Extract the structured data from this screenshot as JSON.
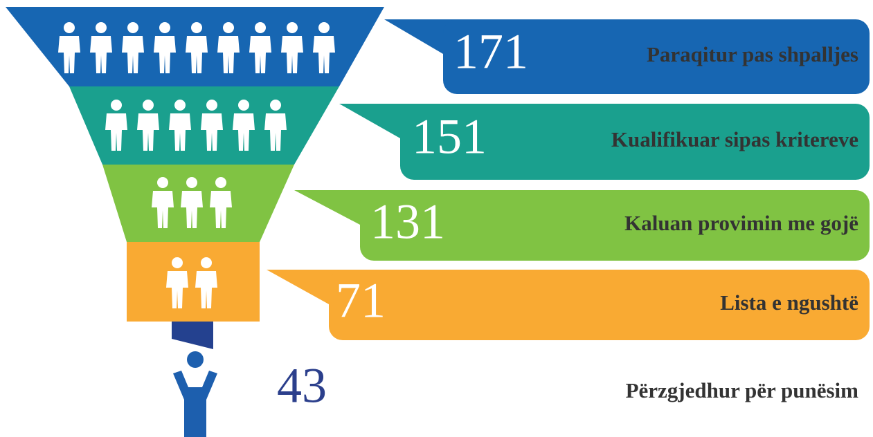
{
  "stages": [
    {
      "value": "171",
      "label": "Paraqitur pas shpalljes"
    },
    {
      "value": "151",
      "label": "Kualifikuar sipas kritereve"
    },
    {
      "value": "131",
      "label": "Kaluan provimin me gojë"
    },
    {
      "value": "71",
      "label": "Lista e ngushtë"
    }
  ],
  "result": {
    "value": "43",
    "label": "Përzgjedhur për punësim"
  }
}
